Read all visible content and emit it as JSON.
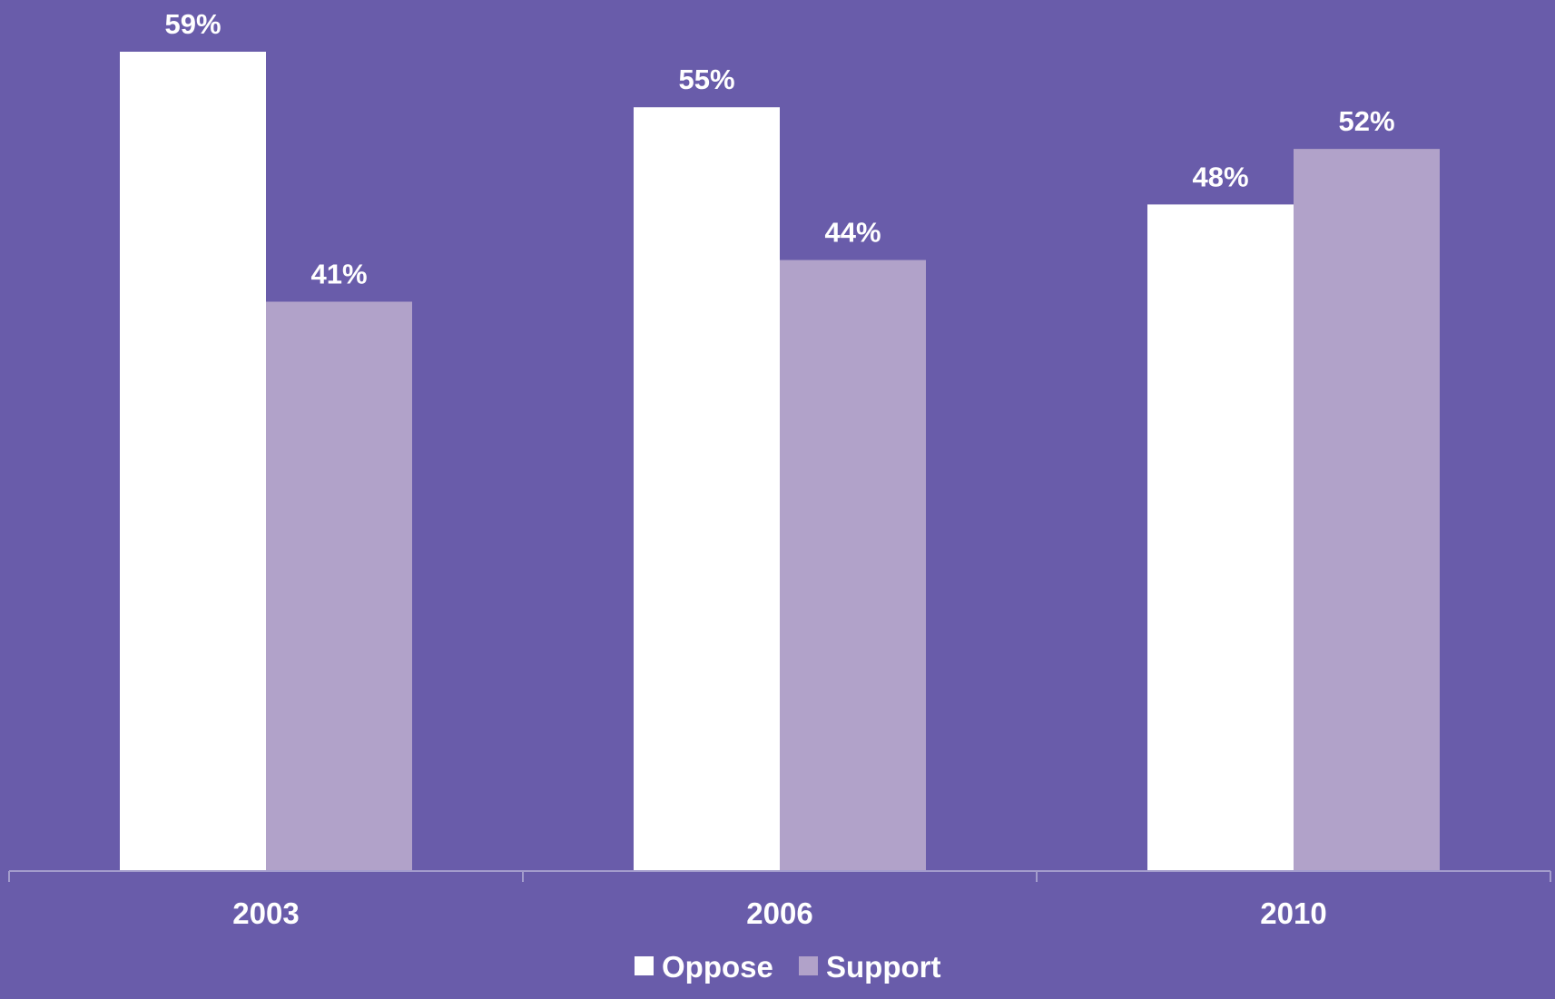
{
  "chart_data": {
    "type": "bar",
    "title": "",
    "xlabel": "",
    "ylabel": "",
    "categories": [
      "2003",
      "2006",
      "2010"
    ],
    "series": [
      {
        "name": "Oppose",
        "values": [
          59,
          55,
          48
        ],
        "labels": [
          "59%",
          "55%",
          "48%"
        ],
        "color": "#ffffff"
      },
      {
        "name": "Support",
        "values": [
          41,
          44,
          52
        ],
        "labels": [
          "41%",
          "44%",
          "52%"
        ],
        "color": "#b1a2c9"
      }
    ],
    "ylim": [
      0,
      62
    ],
    "grid": false,
    "legend": "bottom-center"
  },
  "colors": {
    "background": "#695caa",
    "axis": "#a39ccc",
    "text": "#ffffff"
  }
}
